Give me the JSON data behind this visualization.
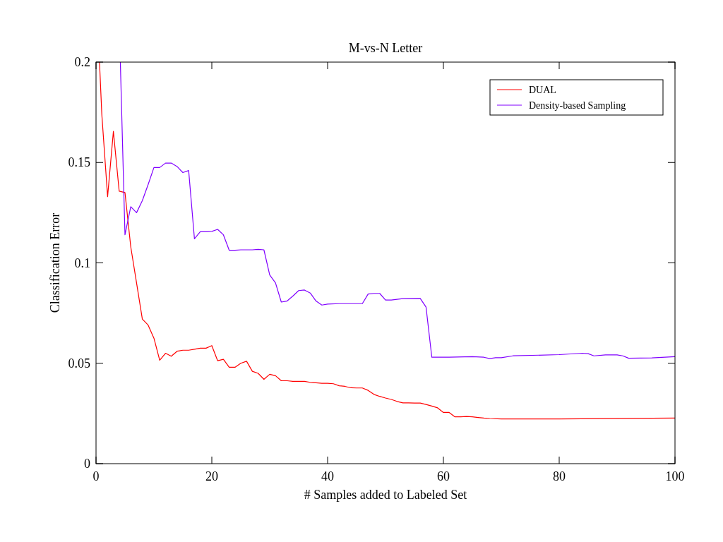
{
  "chart_data": {
    "type": "line",
    "title": "M-vs-N Letter",
    "xlabel": "# Samples added to Labeled Set",
    "ylabel": "Classification Error",
    "xlim": [
      0,
      100
    ],
    "ylim": [
      0,
      0.2
    ],
    "xticks": [
      0,
      20,
      40,
      60,
      80,
      100
    ],
    "yticks": [
      0,
      0.05,
      0.1,
      0.15,
      0.2
    ],
    "grid": false,
    "legend": "top right",
    "marker": "none",
    "line_style": "solid",
    "series": [
      {
        "name": "DUAL",
        "color": "#ff0000",
        "x": [
          0.6,
          1,
          2,
          3,
          4,
          5,
          6,
          7,
          8,
          9,
          10,
          11,
          12,
          13,
          14,
          15,
          16,
          17,
          18,
          19,
          20,
          21,
          22,
          23,
          24,
          25,
          26,
          27,
          28,
          29,
          30,
          31,
          32,
          33,
          34,
          35,
          36,
          37,
          38,
          39,
          40,
          41,
          42,
          43,
          44,
          45,
          46,
          47,
          48,
          49,
          50,
          51,
          52,
          53,
          54,
          55,
          56,
          57,
          58,
          59,
          60,
          61,
          62,
          63,
          64,
          65,
          66,
          67,
          68,
          70,
          80,
          100
        ],
        "values": [
          0.2,
          0.174,
          0.133,
          0.1655,
          0.1357,
          0.135,
          0.108,
          0.09,
          0.072,
          0.069,
          0.0625,
          0.0515,
          0.055,
          0.0535,
          0.056,
          0.0565,
          0.0565,
          0.057,
          0.0575,
          0.0575,
          0.0588,
          0.0513,
          0.052,
          0.048,
          0.048,
          0.05,
          0.051,
          0.046,
          0.045,
          0.042,
          0.0445,
          0.0438,
          0.0413,
          0.0413,
          0.041,
          0.041,
          0.041,
          0.0405,
          0.0403,
          0.04,
          0.04,
          0.0398,
          0.0388,
          0.0385,
          0.0378,
          0.0377,
          0.0377,
          0.0365,
          0.0345,
          0.0335,
          0.0327,
          0.032,
          0.031,
          0.0303,
          0.0303,
          0.0302,
          0.0302,
          0.0295,
          0.0287,
          0.0278,
          0.0255,
          0.0255,
          0.0233,
          0.0233,
          0.0235,
          0.0233,
          0.023,
          0.0227,
          0.0225,
          0.0223,
          0.0223,
          0.0227
        ]
      },
      {
        "name": "Density-based Sampling",
        "color": "#8000ff",
        "x": [
          4.2,
          5,
          6,
          7,
          8,
          9,
          10,
          11,
          12,
          13,
          14,
          15,
          16,
          17,
          18,
          19,
          20,
          21,
          22,
          23,
          24,
          25,
          26,
          27,
          28,
          29,
          30,
          31,
          32,
          33,
          34,
          35,
          36,
          37,
          38,
          39,
          40,
          42,
          46,
          47,
          48,
          49,
          50,
          51,
          53,
          56,
          57,
          58,
          61,
          65,
          67,
          68,
          69,
          70,
          72,
          80,
          84,
          85,
          86,
          88,
          90,
          91,
          92,
          96,
          100
        ],
        "values": [
          0.2,
          0.114,
          0.128,
          0.125,
          0.131,
          0.139,
          0.1475,
          0.1475,
          0.1497,
          0.1497,
          0.148,
          0.145,
          0.146,
          0.112,
          0.1155,
          0.1155,
          0.1157,
          0.1167,
          0.114,
          0.1063,
          0.1063,
          0.1065,
          0.1065,
          0.1065,
          0.1067,
          0.1065,
          0.094,
          0.09,
          0.0805,
          0.081,
          0.0835,
          0.0862,
          0.0865,
          0.085,
          0.081,
          0.079,
          0.0795,
          0.0797,
          0.0797,
          0.0845,
          0.0848,
          0.0848,
          0.0815,
          0.0815,
          0.0822,
          0.0823,
          0.078,
          0.053,
          0.053,
          0.0533,
          0.053,
          0.0523,
          0.0528,
          0.0528,
          0.0537,
          0.0543,
          0.055,
          0.0548,
          0.0537,
          0.0542,
          0.0542,
          0.0537,
          0.0525,
          0.0527,
          0.0533
        ]
      }
    ]
  }
}
